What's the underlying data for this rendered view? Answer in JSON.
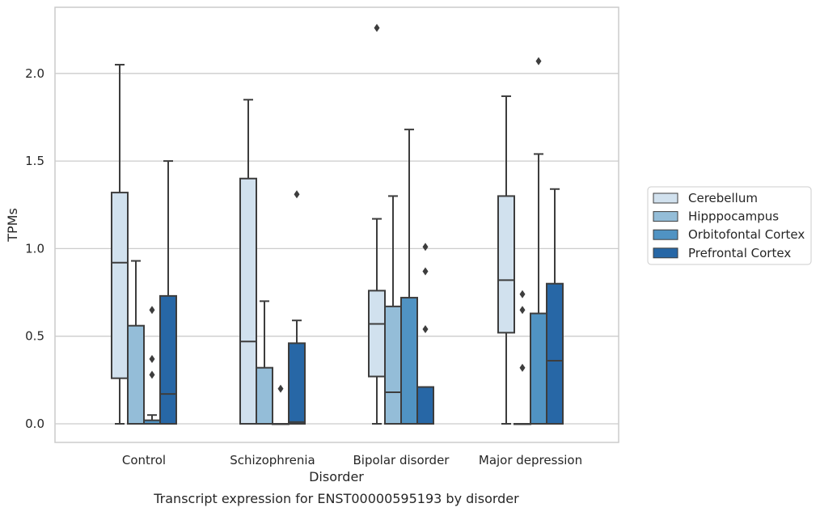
{
  "chart_data": {
    "type": "box",
    "xlabel": "Disorder",
    "ylabel": "TPMs",
    "caption": "Transcript expression for ENST00000595193 by disorder",
    "ylim": [
      -0.11,
      2.38
    ],
    "yticks": [
      "0.0",
      "0.5",
      "1.0",
      "1.5",
      "2.0"
    ],
    "grid": "horizontal",
    "legend_position": "right",
    "categories": [
      "Control",
      "Schizophrenia",
      "Bipolar disorder",
      "Major depression"
    ],
    "series": [
      {
        "name": "Cerebellum",
        "color": "#d1e1ee",
        "boxes": [
          {
            "whisker_low": 0.0,
            "q1": 0.26,
            "median": 0.92,
            "q3": 1.32,
            "whisker_high": 2.05,
            "outliers": []
          },
          {
            "whisker_low": 0.0,
            "q1": 0.0,
            "median": 0.47,
            "q3": 1.4,
            "whisker_high": 1.85,
            "outliers": []
          },
          {
            "whisker_low": 0.0,
            "q1": 0.27,
            "median": 0.57,
            "q3": 0.76,
            "whisker_high": 1.17,
            "outliers": [
              2.26
            ]
          },
          {
            "whisker_low": 0.0,
            "q1": 0.52,
            "median": 0.82,
            "q3": 1.3,
            "whisker_high": 1.87,
            "outliers": []
          }
        ]
      },
      {
        "name": "Hipppocampus",
        "color": "#94bdd8",
        "boxes": [
          {
            "whisker_low": 0.0,
            "q1": 0.0,
            "median": 0.0,
            "q3": 0.56,
            "whisker_high": 0.93,
            "outliers": []
          },
          {
            "whisker_low": 0.0,
            "q1": 0.0,
            "median": 0.0,
            "q3": 0.32,
            "whisker_high": 0.7,
            "outliers": []
          },
          {
            "whisker_low": 0.0,
            "q1": 0.0,
            "median": 0.18,
            "q3": 0.67,
            "whisker_high": 1.3,
            "outliers": []
          },
          {
            "whisker_low": 0.0,
            "q1": 0.0,
            "median": 0.0,
            "q3": 0.0,
            "whisker_high": 0.0,
            "outliers": [
              0.32,
              0.65,
              0.74
            ]
          }
        ]
      },
      {
        "name": "Orbitofontal Cortex",
        "color": "#5093c3",
        "boxes": [
          {
            "whisker_low": 0.0,
            "q1": 0.0,
            "median": 0.0,
            "q3": 0.02,
            "whisker_high": 0.05,
            "outliers": [
              0.28,
              0.37,
              0.65
            ]
          },
          {
            "whisker_low": 0.0,
            "q1": 0.0,
            "median": 0.0,
            "q3": 0.0,
            "whisker_high": 0.0,
            "outliers": [
              0.2
            ]
          },
          {
            "whisker_low": 0.0,
            "q1": 0.0,
            "median": 0.0,
            "q3": 0.72,
            "whisker_high": 1.68,
            "outliers": []
          },
          {
            "whisker_low": 0.0,
            "q1": 0.0,
            "median": 0.0,
            "q3": 0.63,
            "whisker_high": 1.54,
            "outliers": [
              2.07
            ]
          }
        ]
      },
      {
        "name": "Prefrontal Cortex",
        "color": "#2767a6",
        "boxes": [
          {
            "whisker_low": 0.0,
            "q1": 0.0,
            "median": 0.17,
            "q3": 0.73,
            "whisker_high": 1.5,
            "outliers": []
          },
          {
            "whisker_low": 0.0,
            "q1": 0.0,
            "median": 0.01,
            "q3": 0.46,
            "whisker_high": 0.59,
            "outliers": [
              1.31
            ]
          },
          {
            "whisker_low": 0.0,
            "q1": 0.0,
            "median": 0.0,
            "q3": 0.21,
            "whisker_high": 0.21,
            "outliers": [
              0.54,
              0.87,
              1.01
            ]
          },
          {
            "whisker_low": 0.0,
            "q1": 0.0,
            "median": 0.36,
            "q3": 0.8,
            "whisker_high": 1.34,
            "outliers": []
          }
        ]
      }
    ]
  }
}
